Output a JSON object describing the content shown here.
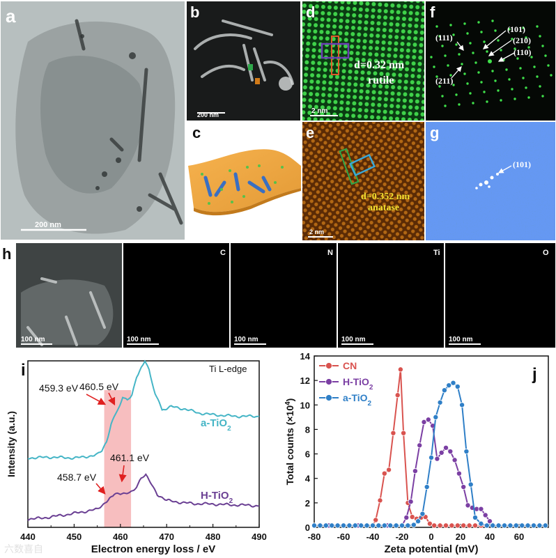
{
  "panels": {
    "a": {
      "label": "a",
      "scale": "200 nm"
    },
    "b": {
      "label": "b",
      "scale": "200 nm"
    },
    "c": {
      "label": "c"
    },
    "d": {
      "label": "d",
      "scale": "2 nm",
      "annotation_line1": "d=0.32 nm",
      "annotation_line2": "rutile"
    },
    "e": {
      "label": "e",
      "scale": "2 nm",
      "annotation_line1": "d=0.352 nm",
      "annotation_line2": "anatase"
    },
    "f": {
      "label": "f",
      "spots": [
        "(111)",
        "(101)",
        "(210)",
        "(110)",
        "(211)"
      ]
    },
    "g": {
      "label": "g",
      "spots": [
        "(101)"
      ]
    },
    "h": {
      "label": "h",
      "scale": "100 nm",
      "maps": [
        "C",
        "N",
        "Ti",
        "O"
      ]
    },
    "i": {
      "label": "i"
    },
    "j": {
      "label": "j"
    }
  },
  "colors": {
    "a_TiO2": "#45b5c6",
    "H_TiO2": "#6a3f93",
    "highlight": "#f4a8aa",
    "arrow": "#e02020",
    "CN": "#d9534f",
    "H_TiO2_zeta": "#7b3fa3",
    "a_TiO2_zeta": "#2f7fc7",
    "map_C": "#d41c1c",
    "map_N": "#2ad22a",
    "map_Ti": "#c020c0",
    "map_O": "#d4d020"
  },
  "watermark": "六数喜自",
  "chart_data": [
    {
      "type": "line",
      "panel": "i",
      "title": "Ti L-edge",
      "xlabel": "Electron energy loss / eV",
      "ylabel": "Intensity (a.u.)",
      "xlim": [
        440,
        490
      ],
      "xticks": [
        440,
        450,
        460,
        470,
        480,
        490
      ],
      "highlight_range": [
        456.5,
        462.3
      ],
      "series": [
        {
          "name": "a-TiO2",
          "label_main": "a-TiO",
          "label_sub": "2",
          "x": [
            440,
            445,
            450,
            452,
            454,
            455,
            456,
            457,
            458,
            459.3,
            460.5,
            461.5,
            462.5,
            463.5,
            464.5,
            465.3,
            466.2,
            467.5,
            469,
            471,
            474,
            477,
            480,
            485,
            490
          ],
          "y": [
            10.4,
            10.5,
            10.4,
            10.5,
            10.7,
            10.8,
            11.3,
            12.5,
            14.6,
            16.3,
            18.0,
            17.5,
            18.3,
            20.6,
            21.6,
            22.6,
            21.4,
            18.4,
            16.4,
            16.8,
            16.5,
            16.0,
            15.8,
            15.6,
            15.6
          ]
        },
        {
          "name": "H-TiO2",
          "label_main": "H-TiO",
          "label_sub": "2",
          "x": [
            440,
            443,
            446,
            449,
            452,
            455,
            457,
            458.7,
            460,
            461.1,
            462,
            463.5,
            464.5,
            465.5,
            466.5,
            468,
            470,
            473,
            476,
            480,
            484,
            488,
            490
          ],
          "y": [
            1.2,
            1.4,
            1.9,
            2.4,
            3.0,
            3.6,
            5.6,
            7.2,
            7.5,
            7.8,
            7.8,
            9.2,
            11.1,
            12.2,
            10.5,
            7.3,
            5.8,
            5.3,
            5.0,
            4.9,
            4.7,
            4.6,
            4.4
          ]
        }
      ],
      "annotations": [
        {
          "text": "460.5 eV",
          "x": 460.5,
          "series": "a-TiO2"
        },
        {
          "text": "459.3 eV",
          "x": 459.3,
          "series": "a-TiO2"
        },
        {
          "text": "461.1 eV",
          "x": 461.1,
          "series": "H-TiO2"
        },
        {
          "text": "458.7 eV",
          "x": 458.7,
          "series": "H-TiO2"
        }
      ]
    },
    {
      "type": "line",
      "panel": "j",
      "xlabel": "Zeta potential (mV)",
      "ylabel_main": "Total counts (×10",
      "ylabel_sup": "4",
      "ylabel_end": ")",
      "xlim": [
        -80,
        80
      ],
      "ylim": [
        0,
        14
      ],
      "xticks": [
        -80,
        -60,
        -40,
        -20,
        0,
        20,
        40,
        60
      ],
      "yticks": [
        0,
        2,
        4,
        6,
        8,
        10,
        12,
        14
      ],
      "legend": "top-left",
      "series": [
        {
          "name": "CN",
          "label_main": "CN",
          "label_sub": "",
          "x": [
            -80,
            -76,
            -72,
            -68,
            -64,
            -60,
            -56,
            -52,
            -48,
            -44,
            -40,
            -38,
            -35,
            -32,
            -29,
            -26,
            -23,
            -21,
            -19,
            -16,
            -13,
            -10,
            -7,
            -4,
            -1,
            2,
            6,
            10,
            14,
            18,
            22,
            26,
            30,
            34,
            38,
            42,
            46,
            50,
            54,
            58,
            62,
            66,
            70,
            74,
            78
          ],
          "y": [
            0.15,
            0.15,
            0.15,
            0.15,
            0.15,
            0.15,
            0.15,
            0.15,
            0.15,
            0.15,
            0.15,
            0.6,
            2.2,
            4.4,
            4.7,
            7.7,
            10.8,
            12.9,
            7.7,
            2.0,
            0.85,
            0.7,
            0.8,
            0.85,
            0.3,
            0.15,
            0.15,
            0.15,
            0.15,
            0.15,
            0.15,
            0.15,
            0.15,
            0.15,
            0.15,
            0.15,
            0.15,
            0.15,
            0.15,
            0.15,
            0.15,
            0.15,
            0.15,
            0.15,
            0.15
          ]
        },
        {
          "name": "H-TiO2",
          "label_main": "H-TiO",
          "label_sub": "2",
          "x": [
            -80,
            -70,
            -60,
            -50,
            -40,
            -30,
            -20,
            -17,
            -14,
            -11,
            -8,
            -5,
            -2,
            1,
            4,
            7,
            10,
            13,
            16,
            19,
            22,
            25,
            28,
            31,
            34,
            37,
            40,
            42
          ],
          "y": [
            0.15,
            0.15,
            0.15,
            0.15,
            0.15,
            0.15,
            0.15,
            0.8,
            2.1,
            4.6,
            6.7,
            8.6,
            8.8,
            8.3,
            5.6,
            6.1,
            6.5,
            6.2,
            5.5,
            4.4,
            3.3,
            1.8,
            1.6,
            1.5,
            1.5,
            1.0,
            0.5,
            0.2
          ]
        },
        {
          "name": "a-TiO2",
          "label_main": "a-TiO",
          "label_sub": "2",
          "x": [
            -80,
            -76,
            -72,
            -68,
            -64,
            -60,
            -56,
            -52,
            -48,
            -44,
            -40,
            -36,
            -32,
            -28,
            -24,
            -20,
            -16,
            -12,
            -9,
            -6,
            -3,
            0,
            3,
            6,
            9,
            12,
            15,
            18,
            21,
            24,
            27,
            30,
            34,
            38,
            42,
            46,
            50,
            54,
            58,
            62,
            66,
            70,
            74,
            78
          ],
          "y": [
            0.15,
            0.15,
            0.15,
            0.15,
            0.15,
            0.15,
            0.15,
            0.15,
            0.15,
            0.15,
            0.15,
            0.15,
            0.15,
            0.15,
            0.15,
            0.15,
            0.15,
            0.2,
            0.5,
            1.1,
            3.3,
            5.7,
            9.0,
            10.2,
            11.2,
            11.6,
            11.8,
            11.5,
            10.0,
            6.2,
            3.5,
            0.8,
            0.3,
            0.15,
            0.15,
            0.15,
            0.15,
            0.15,
            0.15,
            0.15,
            0.15,
            0.15,
            0.15,
            0.15
          ]
        }
      ]
    }
  ]
}
